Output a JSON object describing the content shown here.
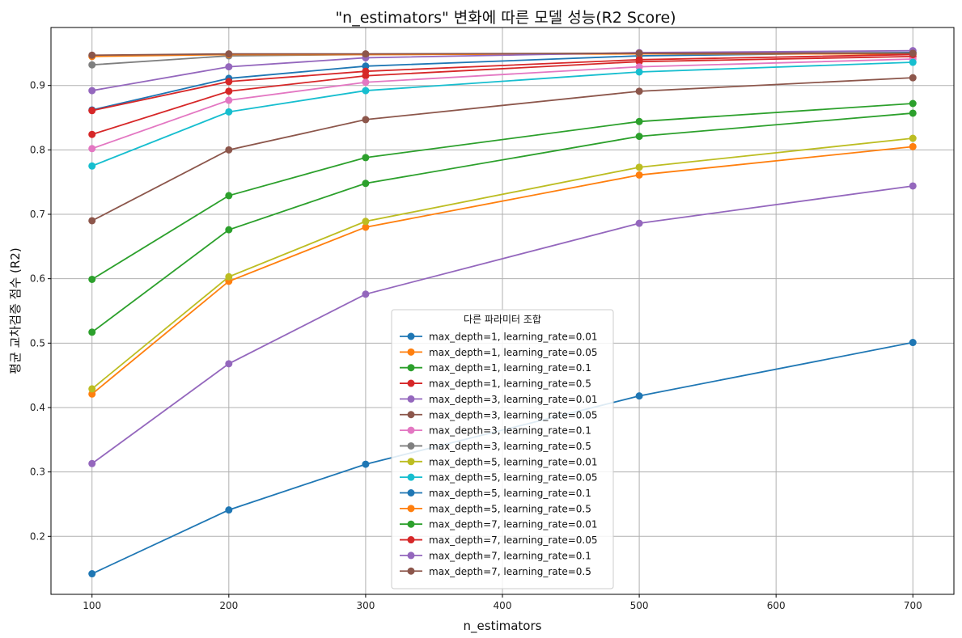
{
  "chart_data": {
    "type": "line",
    "title": "\"n_estimators\" 변화에 따른 모델 성능(R2 Score)",
    "xlabel": "n_estimators",
    "ylabel": "평균 교차검증 점수 (R2)",
    "x": [
      100,
      200,
      300,
      500,
      700
    ],
    "x_ticks": [
      100,
      200,
      300,
      400,
      500,
      600,
      700
    ],
    "y_ticks": [
      0.2,
      0.3,
      0.4,
      0.5,
      0.6,
      0.7,
      0.8,
      0.9
    ],
    "xlim": [
      70,
      730
    ],
    "ylim": [
      0.11,
      0.99
    ],
    "grid": true,
    "legend": {
      "title": "다른 파라미터 조합",
      "placement": "lower-center"
    },
    "series": [
      {
        "name": "max_depth=1, learning_rate=0.01",
        "color": "#1f77b4",
        "values": [
          0.142,
          0.241,
          0.312,
          0.418,
          0.501
        ]
      },
      {
        "name": "max_depth=1, learning_rate=0.05",
        "color": "#ff7f0e",
        "values": [
          0.421,
          0.596,
          0.68,
          0.761,
          0.805
        ]
      },
      {
        "name": "max_depth=1, learning_rate=0.1",
        "color": "#2ca02c",
        "values": [
          0.599,
          0.729,
          0.788,
          0.844,
          0.872
        ]
      },
      {
        "name": "max_depth=1, learning_rate=0.5",
        "color": "#d62728",
        "values": [
          0.824,
          0.891,
          0.915,
          0.937,
          0.945
        ]
      },
      {
        "name": "max_depth=3, learning_rate=0.01",
        "color": "#9467bd",
        "values": [
          0.313,
          0.468,
          0.576,
          0.686,
          0.744
        ]
      },
      {
        "name": "max_depth=3, learning_rate=0.05",
        "color": "#8c564b",
        "values": [
          0.69,
          0.8,
          0.847,
          0.891,
          0.912
        ]
      },
      {
        "name": "max_depth=3, learning_rate=0.1",
        "color": "#e377c2",
        "values": [
          0.802,
          0.877,
          0.905,
          0.929,
          0.941
        ]
      },
      {
        "name": "max_depth=3, learning_rate=0.5",
        "color": "#7f7f7f",
        "values": [
          0.932,
          0.946,
          0.948,
          0.95,
          0.951
        ]
      },
      {
        "name": "max_depth=5, learning_rate=0.01",
        "color": "#bcbd22",
        "values": [
          0.429,
          0.603,
          0.689,
          0.773,
          0.818
        ]
      },
      {
        "name": "max_depth=5, learning_rate=0.05",
        "color": "#17becf",
        "values": [
          0.775,
          0.859,
          0.892,
          0.921,
          0.936
        ]
      },
      {
        "name": "max_depth=5, learning_rate=0.1",
        "color": "#1f77b4",
        "values": [
          0.862,
          0.911,
          0.93,
          0.946,
          0.951
        ]
      },
      {
        "name": "max_depth=5, learning_rate=0.5",
        "color": "#ff7f0e",
        "values": [
          0.945,
          0.948,
          0.948,
          0.949,
          0.949
        ]
      },
      {
        "name": "max_depth=7, learning_rate=0.01",
        "color": "#2ca02c",
        "values": [
          0.517,
          0.676,
          0.748,
          0.821,
          0.857
        ]
      },
      {
        "name": "max_depth=7, learning_rate=0.05",
        "color": "#d62728",
        "values": [
          0.861,
          0.906,
          0.922,
          0.94,
          0.948
        ]
      },
      {
        "name": "max_depth=7, learning_rate=0.1",
        "color": "#9467bd",
        "values": [
          0.892,
          0.929,
          0.943,
          0.951,
          0.954
        ]
      },
      {
        "name": "max_depth=7, learning_rate=0.5",
        "color": "#8c564b",
        "values": [
          0.947,
          0.949,
          0.949,
          0.95,
          0.95
        ]
      }
    ]
  }
}
